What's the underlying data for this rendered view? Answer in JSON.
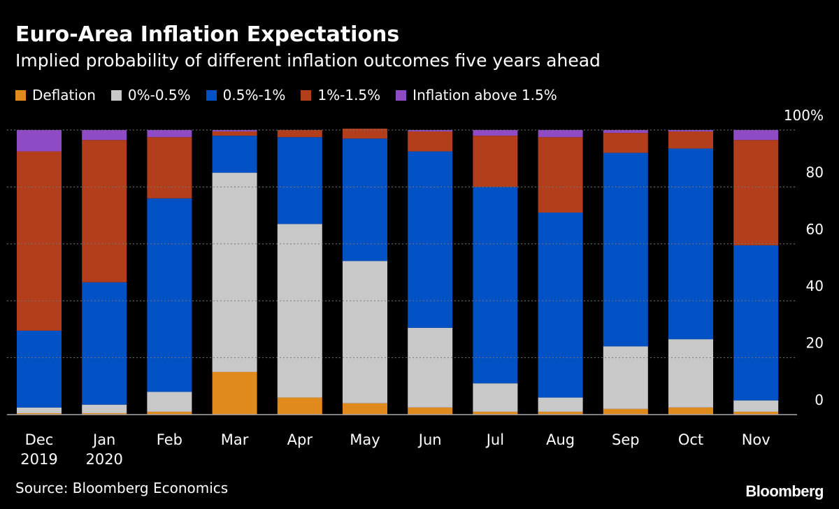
{
  "header": {
    "title": "Euro-Area Inflation Expectations",
    "subtitle": "Implied probability of different inflation outcomes five years ahead"
  },
  "footer": {
    "source": "Source: Bloomberg Economics",
    "brand": "Bloomberg"
  },
  "colors": {
    "background": "#000000",
    "grid": "#555555",
    "text": "#ffffff"
  },
  "chart_data": {
    "type": "bar",
    "stacked": true,
    "title": "Euro-Area Inflation Expectations",
    "subtitle": "Implied probability of different inflation outcomes five years ahead",
    "categories": [
      "Dec\n2019",
      "Jan\n2020",
      "Feb",
      "Mar",
      "Apr",
      "May",
      "Jun",
      "Jul",
      "Aug",
      "Sep",
      "Oct",
      "Nov"
    ],
    "series": [
      {
        "name": "Deflation",
        "color": "#e08a1e",
        "values": [
          0.5,
          0.5,
          1,
          15,
          6,
          4,
          2.5,
          1,
          1,
          2,
          2.5,
          1
        ]
      },
      {
        "name": "0%-0.5%",
        "color": "#c8c8c8",
        "values": [
          2,
          3,
          7,
          70,
          61,
          50,
          28,
          10,
          5,
          22,
          24,
          4
        ]
      },
      {
        "name": "0.5%-1%",
        "color": "#0051c4",
        "values": [
          27,
          43,
          68,
          13,
          30.5,
          43,
          62,
          69,
          65,
          68,
          67,
          54.5
        ]
      },
      {
        "name": "1%-1.5%",
        "color": "#b33e1c",
        "values": [
          63,
          50,
          21.5,
          1.5,
          2.5,
          3.5,
          7,
          18,
          26.5,
          7,
          6,
          37
        ]
      },
      {
        "name": "Inflation above 1.5%",
        "color": "#8e4bc4",
        "values": [
          7.5,
          3.5,
          2.5,
          0.5,
          0,
          0,
          0.5,
          2,
          2.5,
          1,
          0.5,
          3.5
        ]
      }
    ],
    "y_axis": {
      "min": 0,
      "max": 100,
      "ticks": [
        0,
        20,
        40,
        60,
        80,
        100
      ],
      "tick_labels": [
        "0",
        "20",
        "40",
        "60",
        "80",
        "100%"
      ],
      "position": "right"
    },
    "grid": true,
    "legend_position": "top-left"
  }
}
